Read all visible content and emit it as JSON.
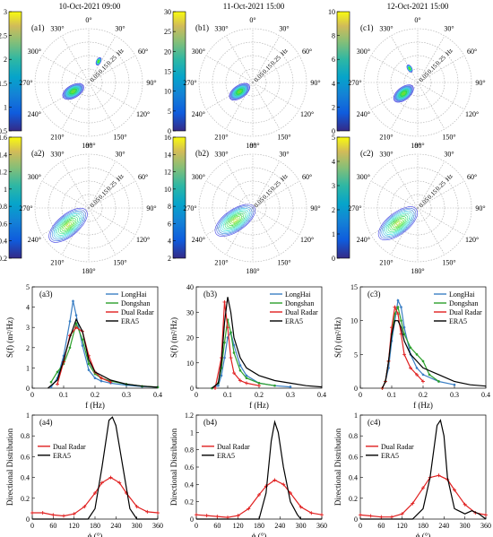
{
  "columns": [
    {
      "date_label": "10-Oct-2021 09:00"
    },
    {
      "date_label": "11-Oct-2021 15:00"
    },
    {
      "date_label": "12-Oct-2021 15:00"
    }
  ],
  "polar": {
    "angle_labels": [
      "0°",
      "30°",
      "60°",
      "90°",
      "120°",
      "150°",
      "180°",
      "210°",
      "240°",
      "270°",
      "300°",
      "330°"
    ],
    "freq_labels": [
      "0.05",
      "0.15",
      "0.25",
      "Hz"
    ]
  },
  "panel_tags": {
    "row1": [
      "(a1)",
      "(b1)",
      "(c1)"
    ],
    "row2": [
      "(a2)",
      "(b2)",
      "(c2)"
    ],
    "row3": [
      "(a3)",
      "(b3)",
      "(c3)"
    ],
    "row4": [
      "(a4)",
      "(b4)",
      "(c4)"
    ]
  },
  "colors": {
    "LongHai": "#3b7fc4",
    "Dongshan": "#2ca02c",
    "Dual Radar": "#e02020",
    "ERA5": "#000000"
  },
  "colormap": "parula",
  "chart_data": [
    {
      "type": "heatmap",
      "panel": "a1",
      "projection": "polar",
      "colorbar": {
        "min": 0.5,
        "max": 3,
        "ticks": [
          0.5,
          1,
          1.5,
          2,
          2.5,
          3
        ]
      },
      "peak_direction_deg": 240,
      "peak_frequency_hz": 0.1,
      "secondary_peak_direction_deg": 25,
      "secondary_peak_frequency_hz": 0.13
    },
    {
      "type": "heatmap",
      "panel": "b1",
      "projection": "polar",
      "colorbar": {
        "min": 0,
        "max": 30,
        "ticks": [
          0,
          5,
          10,
          15,
          20,
          25,
          30
        ]
      },
      "peak_direction_deg": 235,
      "peak_frequency_hz": 0.09
    },
    {
      "type": "heatmap",
      "panel": "c1",
      "projection": "polar",
      "colorbar": {
        "min": 0,
        "max": 10,
        "ticks": [
          0,
          2,
          4,
          6,
          8,
          10
        ]
      },
      "peak_direction_deg": 232,
      "peak_frequency_hz": 0.1,
      "secondary_peak_direction_deg": 330,
      "secondary_peak_frequency_hz": 0.09
    },
    {
      "type": "heatmap",
      "panel": "a2",
      "projection": "polar",
      "colorbar": {
        "min": 0.2,
        "max": 1.6,
        "ticks": [
          0.2,
          0.4,
          0.6,
          0.8,
          1,
          1.2,
          1.4,
          1.6
        ]
      },
      "peak_direction_deg": 230,
      "peak_frequency_hz": 0.15
    },
    {
      "type": "heatmap",
      "panel": "b2",
      "projection": "polar",
      "colorbar": {
        "min": 2,
        "max": 16,
        "ticks": [
          2,
          4,
          6,
          8,
          10,
          12,
          14,
          16
        ]
      },
      "peak_direction_deg": 235,
      "peak_frequency_hz": 0.12
    },
    {
      "type": "heatmap",
      "panel": "c2",
      "projection": "polar",
      "colorbar": {
        "min": 0,
        "max": 5,
        "ticks": [
          0,
          1,
          2,
          3,
          4,
          5
        ]
      },
      "peak_direction_deg": 232,
      "peak_frequency_hz": 0.14
    },
    {
      "type": "line",
      "panel": "a3",
      "xlabel": "f (Hz)",
      "ylabel": "S(f) (m²/Hz)",
      "xlim": [
        0,
        0.4
      ],
      "ylim": [
        0,
        5
      ],
      "xticks": [
        0,
        0.1,
        0.2,
        0.3,
        0.4
      ],
      "yticks": [
        0,
        1,
        2,
        3,
        4,
        5
      ],
      "legend": "top-right",
      "series": [
        {
          "name": "LongHai",
          "marker": "dot",
          "x": [
            0.06,
            0.08,
            0.1,
            0.12,
            0.13,
            0.14,
            0.16,
            0.18,
            0.2,
            0.22,
            0.25,
            0.3,
            0.35,
            0.4
          ],
          "y": [
            0.05,
            0.5,
            1.6,
            3.3,
            4.3,
            3.6,
            2.1,
            0.9,
            0.5,
            0.35,
            0.25,
            0.15,
            0.08,
            0.05
          ]
        },
        {
          "name": "Dongshan",
          "marker": "dot",
          "x": [
            0.06,
            0.08,
            0.1,
            0.12,
            0.14,
            0.16,
            0.18,
            0.2,
            0.22,
            0.25,
            0.3,
            0.35,
            0.4
          ],
          "y": [
            0.3,
            0.8,
            1.2,
            2.0,
            3.2,
            2.4,
            1.2,
            0.7,
            0.5,
            0.35,
            0.2,
            0.1,
            0.05
          ]
        },
        {
          "name": "Dual Radar",
          "marker": "plus",
          "x": [
            0.08,
            0.1,
            0.12,
            0.14,
            0.16,
            0.18,
            0.2,
            0.22,
            0.25
          ],
          "y": [
            0.2,
            1.3,
            2.6,
            3.0,
            2.8,
            1.6,
            0.8,
            0.5,
            0.3
          ]
        },
        {
          "name": "ERA5",
          "marker": "none",
          "x": [
            0.05,
            0.08,
            0.1,
            0.12,
            0.14,
            0.16,
            0.18,
            0.2,
            0.25,
            0.3,
            0.35,
            0.4
          ],
          "y": [
            0,
            0.4,
            1.4,
            2.5,
            3.4,
            2.8,
            1.4,
            0.8,
            0.4,
            0.2,
            0.1,
            0.05
          ]
        }
      ]
    },
    {
      "type": "line",
      "panel": "b3",
      "xlabel": "f (Hz)",
      "ylabel": "S(f) (m²/Hz)",
      "xlim": [
        0,
        0.4
      ],
      "ylim": [
        0,
        40
      ],
      "xticks": [
        0,
        0.1,
        0.2,
        0.3,
        0.4
      ],
      "yticks": [
        0,
        10,
        20,
        30,
        40
      ],
      "legend": "top-right",
      "series": [
        {
          "name": "LongHai",
          "marker": "dot",
          "x": [
            0.05,
            0.07,
            0.08,
            0.09,
            0.1,
            0.11,
            0.12,
            0.14,
            0.16,
            0.2,
            0.25,
            0.3
          ],
          "y": [
            0,
            1,
            5,
            12,
            20,
            22,
            17,
            9,
            5,
            2,
            1,
            0.5
          ]
        },
        {
          "name": "Dongshan",
          "marker": "dot",
          "x": [
            0.05,
            0.07,
            0.08,
            0.09,
            0.1,
            0.11,
            0.12,
            0.14,
            0.16,
            0.2,
            0.25
          ],
          "y": [
            0,
            2,
            8,
            18,
            27,
            22,
            14,
            7,
            4,
            2,
            1
          ]
        },
        {
          "name": "Dual Radar",
          "marker": "plus",
          "x": [
            0.06,
            0.08,
            0.09,
            0.1,
            0.11,
            0.12,
            0.14,
            0.16,
            0.2
          ],
          "y": [
            0,
            12,
            34,
            24,
            12,
            6,
            3,
            2,
            1
          ]
        },
        {
          "name": "ERA5",
          "marker": "none",
          "x": [
            0.05,
            0.07,
            0.08,
            0.09,
            0.1,
            0.11,
            0.12,
            0.14,
            0.16,
            0.2,
            0.25,
            0.3,
            0.35,
            0.4
          ],
          "y": [
            0,
            2,
            10,
            26,
            36,
            30,
            20,
            12,
            8,
            5,
            3,
            2,
            1,
            0.5
          ]
        }
      ]
    },
    {
      "type": "line",
      "panel": "c3",
      "xlabel": "f (Hz)",
      "ylabel": "S(f) (m²/Hz)",
      "xlim": [
        0,
        0.4
      ],
      "ylim": [
        0,
        15
      ],
      "xticks": [
        0,
        0.1,
        0.2,
        0.3,
        0.4
      ],
      "yticks": [
        0,
        5,
        10,
        15
      ],
      "legend": "top-right",
      "series": [
        {
          "name": "LongHai",
          "marker": "dot",
          "x": [
            0.07,
            0.08,
            0.09,
            0.1,
            0.11,
            0.12,
            0.13,
            0.14,
            0.16,
            0.18,
            0.2,
            0.25,
            0.3
          ],
          "y": [
            0,
            1,
            3,
            7,
            10,
            13,
            12,
            9,
            5,
            3,
            2,
            1,
            0.5
          ]
        },
        {
          "name": "Dongshan",
          "marker": "dot",
          "x": [
            0.07,
            0.08,
            0.09,
            0.1,
            0.11,
            0.12,
            0.13,
            0.14,
            0.16,
            0.18,
            0.2,
            0.22,
            0.25
          ],
          "y": [
            0,
            1,
            4,
            8,
            11,
            12,
            10,
            8,
            6,
            5,
            4,
            2,
            1
          ]
        },
        {
          "name": "Dual Radar",
          "marker": "plus",
          "x": [
            0.07,
            0.08,
            0.09,
            0.1,
            0.11,
            0.12,
            0.13,
            0.14,
            0.16,
            0.18,
            0.2
          ],
          "y": [
            0,
            1,
            4,
            9,
            12,
            11,
            8,
            5,
            3,
            2,
            1
          ]
        },
        {
          "name": "ERA5",
          "marker": "none",
          "x": [
            0.07,
            0.08,
            0.09,
            0.1,
            0.11,
            0.12,
            0.13,
            0.14,
            0.16,
            0.2,
            0.25,
            0.3,
            0.35,
            0.4
          ],
          "y": [
            0,
            1,
            4,
            8,
            10,
            10,
            9,
            7,
            5,
            3,
            2,
            1,
            0.5,
            0.3
          ]
        }
      ]
    },
    {
      "type": "line",
      "panel": "a4",
      "xlabel": "ϕ (°)",
      "ylabel": "Directional Distribution",
      "xlim": [
        0,
        360
      ],
      "ylim": [
        0,
        1
      ],
      "xticks": [
        0,
        60,
        120,
        180,
        240,
        300,
        360
      ],
      "yticks": [
        0,
        0.2,
        0.4,
        0.6,
        0.8,
        1
      ],
      "legend": "middle-left",
      "series": [
        {
          "name": "Dual Radar",
          "marker": "plus",
          "x": [
            0,
            30,
            60,
            90,
            120,
            150,
            180,
            200,
            225,
            250,
            270,
            300,
            330,
            360
          ],
          "y": [
            0.06,
            0.06,
            0.04,
            0.03,
            0.05,
            0.12,
            0.25,
            0.35,
            0.4,
            0.35,
            0.25,
            0.12,
            0.07,
            0.06
          ]
        },
        {
          "name": "ERA5",
          "marker": "none",
          "x": [
            0,
            120,
            160,
            180,
            200,
            220,
            230,
            240,
            260,
            280,
            300,
            360
          ],
          "y": [
            0,
            0,
            0,
            0.1,
            0.5,
            0.95,
            0.98,
            0.9,
            0.5,
            0.1,
            0,
            0
          ]
        }
      ]
    },
    {
      "type": "line",
      "panel": "b4",
      "xlabel": "ϕ (°)",
      "ylabel": "Directional Distribution",
      "xlim": [
        0,
        360
      ],
      "ylim": [
        0,
        1.2
      ],
      "xticks": [
        0,
        60,
        120,
        180,
        240,
        300,
        360
      ],
      "yticks": [
        0,
        0.2,
        0.4,
        0.6,
        0.8,
        1,
        1.2
      ],
      "legend": "middle-left",
      "series": [
        {
          "name": "Dual Radar",
          "marker": "plus",
          "x": [
            0,
            30,
            60,
            90,
            120,
            150,
            180,
            200,
            225,
            250,
            270,
            300,
            330,
            360
          ],
          "y": [
            0.05,
            0.04,
            0.03,
            0.02,
            0.04,
            0.12,
            0.28,
            0.38,
            0.45,
            0.4,
            0.3,
            0.14,
            0.07,
            0.05
          ]
        },
        {
          "name": "ERA5",
          "marker": "none",
          "x": [
            0,
            150,
            180,
            200,
            215,
            225,
            235,
            250,
            270,
            290,
            300,
            330,
            360
          ],
          "y": [
            0,
            0,
            0,
            0.3,
            0.9,
            1.12,
            1.0,
            0.6,
            0.2,
            0.05,
            0,
            0,
            0
          ]
        }
      ]
    },
    {
      "type": "line",
      "panel": "c4",
      "xlabel": "ϕ (°)",
      "ylabel": "Directional Distribution",
      "xlim": [
        0,
        360
      ],
      "ylim": [
        0,
        1
      ],
      "xticks": [
        0,
        60,
        120,
        180,
        240,
        300,
        360
      ],
      "yticks": [
        0,
        0.2,
        0.4,
        0.6,
        0.8,
        1
      ],
      "legend": "middle-left",
      "series": [
        {
          "name": "Dual Radar",
          "marker": "plus",
          "x": [
            0,
            30,
            60,
            90,
            120,
            150,
            180,
            200,
            225,
            250,
            270,
            300,
            330,
            360
          ],
          "y": [
            0.04,
            0.03,
            0.02,
            0.02,
            0.05,
            0.15,
            0.3,
            0.4,
            0.42,
            0.38,
            0.28,
            0.14,
            0.06,
            0.04
          ]
        },
        {
          "name": "ERA5",
          "marker": "none",
          "x": [
            0,
            150,
            180,
            200,
            220,
            230,
            240,
            250,
            270,
            300,
            320,
            340,
            360
          ],
          "y": [
            0,
            0,
            0.1,
            0.4,
            0.9,
            0.95,
            0.8,
            0.4,
            0.1,
            0.05,
            0.08,
            0.05,
            0
          ]
        }
      ]
    }
  ]
}
